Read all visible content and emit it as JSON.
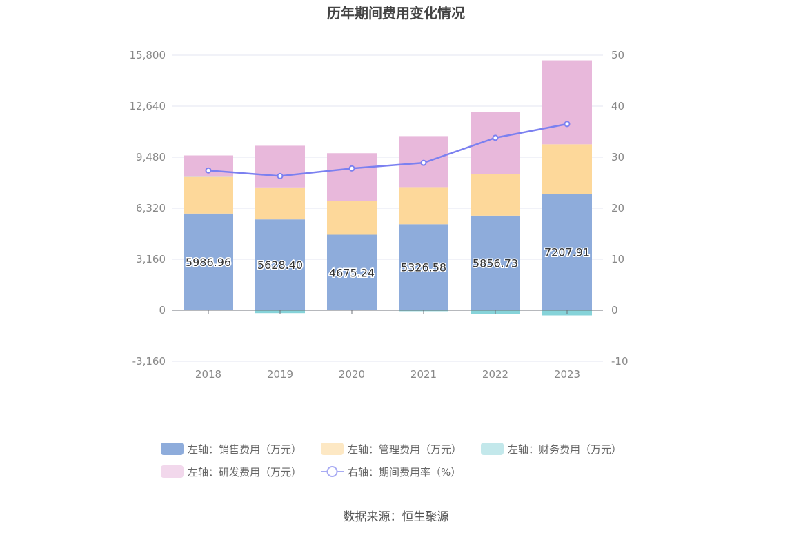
{
  "chart_data": {
    "type": "bar",
    "title": "历年期间费用变化情况",
    "categories": [
      "2018",
      "2019",
      "2020",
      "2021",
      "2022",
      "2023"
    ],
    "series": [
      {
        "name": "左轴：销售费用（万元）",
        "axis": "left",
        "stack": "total",
        "color": "#8eacdb",
        "values": [
          5986.96,
          5628.4,
          4675.24,
          5326.58,
          5856.73,
          7207.91
        ],
        "show_labels": true
      },
      {
        "name": "左轴：管理费用（万元）",
        "axis": "left",
        "stack": "total",
        "color": "#fdd89a",
        "values": [
          2270,
          1980,
          2100,
          2300,
          2580,
          3070
        ],
        "show_labels": false
      },
      {
        "name": "左轴：财务费用（万元）",
        "axis": "left",
        "stack": "total",
        "color": "#86d3d9",
        "values": [
          10,
          -180,
          -20,
          -60,
          -220,
          -320
        ],
        "show_labels": false
      },
      {
        "name": "左轴：研发费用（万元）",
        "axis": "left",
        "stack": "total",
        "color": "#e8b8db",
        "values": [
          1320,
          2580,
          2950,
          3160,
          3850,
          5200
        ],
        "show_labels": false
      },
      {
        "name": "右轴：期间费用率（%）",
        "axis": "right",
        "type": "line",
        "color": "#7b80f0",
        "values": [
          27.4,
          26.3,
          27.8,
          28.9,
          33.8,
          36.5
        ]
      }
    ],
    "y_left": {
      "min": -3160,
      "max": 15800,
      "ticks": [
        -3160,
        0,
        3160,
        6320,
        9480,
        12640,
        15800
      ],
      "tick_labels": [
        "-3,160",
        "0",
        "3,160",
        "6,320",
        "9,480",
        "12,640",
        "15,800"
      ]
    },
    "y_right": {
      "min": -10,
      "max": 50,
      "ticks": [
        -10,
        0,
        10,
        20,
        30,
        40,
        50
      ],
      "tick_labels": [
        "-10",
        "0",
        "10",
        "20",
        "30",
        "40",
        "50"
      ]
    },
    "legend_position": "bottom",
    "grid": true
  },
  "legend": {
    "items": [
      {
        "label": "左轴：销售费用（万元）",
        "color": "#8eacdb",
        "kind": "rect"
      },
      {
        "label": "左轴：管理费用（万元）",
        "color": "#fde8c4",
        "kind": "rect"
      },
      {
        "label": "左轴：财务费用（万元）",
        "color": "#c3e8eb",
        "kind": "rect"
      },
      {
        "label": "左轴：研发费用（万元）",
        "color": "#f2d8ec",
        "kind": "rect"
      },
      {
        "label": "右轴：期间费用率（%）",
        "color": "#a8abf3",
        "kind": "line"
      }
    ]
  },
  "source": "数据来源：恒生聚源"
}
